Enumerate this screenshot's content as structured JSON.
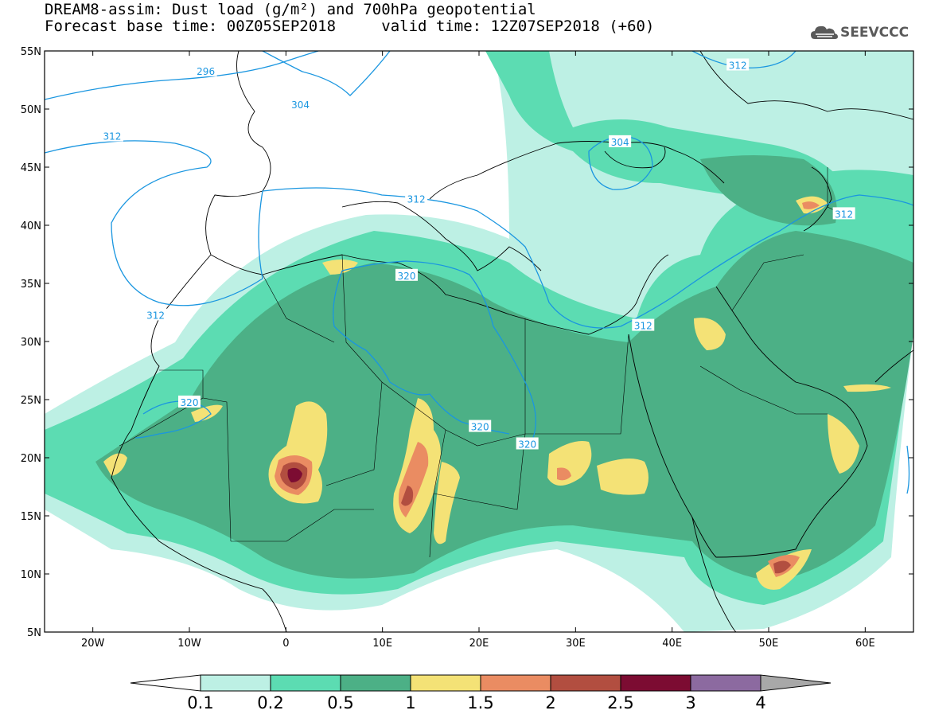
{
  "header": {
    "line1": "DREAM8-assim: Dust load (g/m²) and 700hPa geopotential",
    "base_time": "Forecast base time: 00Z05SEP2018",
    "valid_time": "valid time: 12Z07SEP2018 (+60)"
  },
  "logo": {
    "text": "SEEVCCC",
    "icon": "cloud-icon"
  },
  "map": {
    "lon_range": [
      -25,
      65
    ],
    "lat_range": [
      5,
      55
    ],
    "lon_ticks": [
      {
        "value": -20,
        "label": "20W"
      },
      {
        "value": -10,
        "label": "10W"
      },
      {
        "value": 0,
        "label": "0"
      },
      {
        "value": 10,
        "label": "10E"
      },
      {
        "value": 20,
        "label": "20E"
      },
      {
        "value": 30,
        "label": "30E"
      },
      {
        "value": 40,
        "label": "40E"
      },
      {
        "value": 50,
        "label": "50E"
      },
      {
        "value": 60,
        "label": "60E"
      }
    ],
    "lat_ticks": [
      {
        "value": 55,
        "label": "55N"
      },
      {
        "value": 50,
        "label": "50N"
      },
      {
        "value": 45,
        "label": "45N"
      },
      {
        "value": 40,
        "label": "40N"
      },
      {
        "value": 35,
        "label": "35N"
      },
      {
        "value": 30,
        "label": "30N"
      },
      {
        "value": 25,
        "label": "25N"
      },
      {
        "value": 20,
        "label": "20N"
      },
      {
        "value": 15,
        "label": "15N"
      },
      {
        "value": 10,
        "label": "10N"
      },
      {
        "value": 5,
        "label": "5N"
      }
    ],
    "contour_labels": [
      {
        "text": "296",
        "lon": -8.3,
        "lat": 53.3
      },
      {
        "text": "304",
        "lon": 1.5,
        "lat": 50.4
      },
      {
        "text": "312",
        "lon": -18.0,
        "lat": 47.7
      },
      {
        "text": "312",
        "lon": -13.5,
        "lat": 32.3
      },
      {
        "text": "312",
        "lon": 13.5,
        "lat": 42.3
      },
      {
        "text": "312",
        "lon": 46.8,
        "lat": 53.8
      },
      {
        "text": "304",
        "lon": 34.6,
        "lat": 47.2
      },
      {
        "text": "312",
        "lon": 37.0,
        "lat": 31.4
      },
      {
        "text": "312",
        "lon": 57.8,
        "lat": 41.0
      },
      {
        "text": "320",
        "lon": 12.5,
        "lat": 35.7
      },
      {
        "text": "320",
        "lon": -10.0,
        "lat": 24.8
      },
      {
        "text": "320",
        "lon": 20.1,
        "lat": 22.7
      },
      {
        "text": "320",
        "lon": 25.0,
        "lat": 21.2
      }
    ]
  },
  "colorbar": {
    "boundaries": [
      "0.1",
      "0.2",
      "0.5",
      "1",
      "1.5",
      "2",
      "2.5",
      "3",
      "4"
    ],
    "colors": [
      "#bdf0e4",
      "#5cdcb2",
      "#4cb086",
      "#f4e276",
      "#ea8c62",
      "#b24e40",
      "#7c0c32",
      "#8c6aa0"
    ],
    "under_color": "#ffffff",
    "over_color": "#a8a8a8"
  },
  "dust_colors": {
    "light": "#bdf0e4",
    "mid": "#5cdcb2",
    "dark": "#4cb086",
    "yellow": "#f4e276",
    "orange": "#ea8c62",
    "brown": "#b24e40",
    "maroon": "#7c0c32"
  },
  "contour_color": "#1a96e0"
}
